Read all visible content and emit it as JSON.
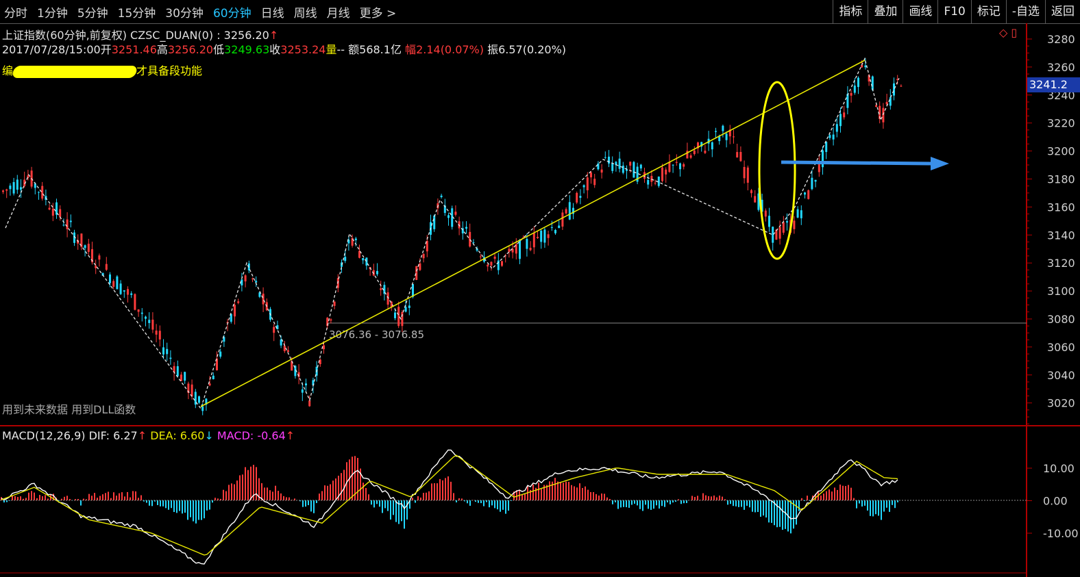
{
  "tabs": [
    {
      "label": "分时"
    },
    {
      "label": "1分钟"
    },
    {
      "label": "5分钟"
    },
    {
      "label": "15分钟"
    },
    {
      "label": "30分钟"
    },
    {
      "label": "60分钟",
      "active": true
    },
    {
      "label": "日线"
    },
    {
      "label": "周线"
    },
    {
      "label": "月线"
    },
    {
      "label": "更多 >"
    }
  ],
  "tools": [
    {
      "label": "指标"
    },
    {
      "label": "叠加"
    },
    {
      "label": "画线"
    },
    {
      "label": "F10"
    },
    {
      "label": "标记"
    },
    {
      "label": "-自选"
    },
    {
      "label": "返回"
    }
  ],
  "header": {
    "title": "上证指数(60分钟,前复权) CZSC_DUAN(0)",
    "last_value": ": 3256.20",
    "arrow_up": "↑",
    "date": "2017/07/28/15:00",
    "open_label": "开",
    "open": "3251.46",
    "high_label": "高",
    "high": "3256.20",
    "low_label": "低",
    "low": "3249.63",
    "close_label": "收",
    "close": "3253.24",
    "volume_label": "量",
    "volume": "--",
    "amount_label": "额",
    "amount": "568.1亿",
    "change_label": "幅",
    "change": "2.14(0.07%)",
    "amplitude_label": "振",
    "amplitude": "6.57(0.20%)"
  },
  "warning_text": "才具备段功能",
  "warning_prefix": "编",
  "footnote": "用到未来数据 用到DLL函数",
  "cursor_price": "3241.2",
  "range_label": "3076.36 - 3076.85",
  "macd": {
    "name": "MACD(12,26,9)",
    "dif_label": "DIF:",
    "dif": "6.27",
    "dif_arrow": "↑",
    "dea_label": "DEA:",
    "dea": "6.60",
    "dea_arrow": "↓",
    "macd_label": "MACD:",
    "macd": "-0.64",
    "macd_arrow": "↑"
  },
  "price_axis": [
    "3280",
    "3260",
    "3240",
    "3220",
    "3200",
    "3180",
    "3160",
    "3140",
    "3120",
    "3100",
    "3080",
    "3060",
    "3040",
    "3020"
  ],
  "macd_axis": [
    "10.00",
    "0.00",
    "-10.00"
  ],
  "colors": {
    "up": "#ff3b3b",
    "down": "#22d8ff",
    "dif": "#ffffff",
    "dea": "#e8e800",
    "macd_label": "#ff40ff",
    "trend": "#e8e800",
    "arrow": "#3a8fe8"
  }
}
